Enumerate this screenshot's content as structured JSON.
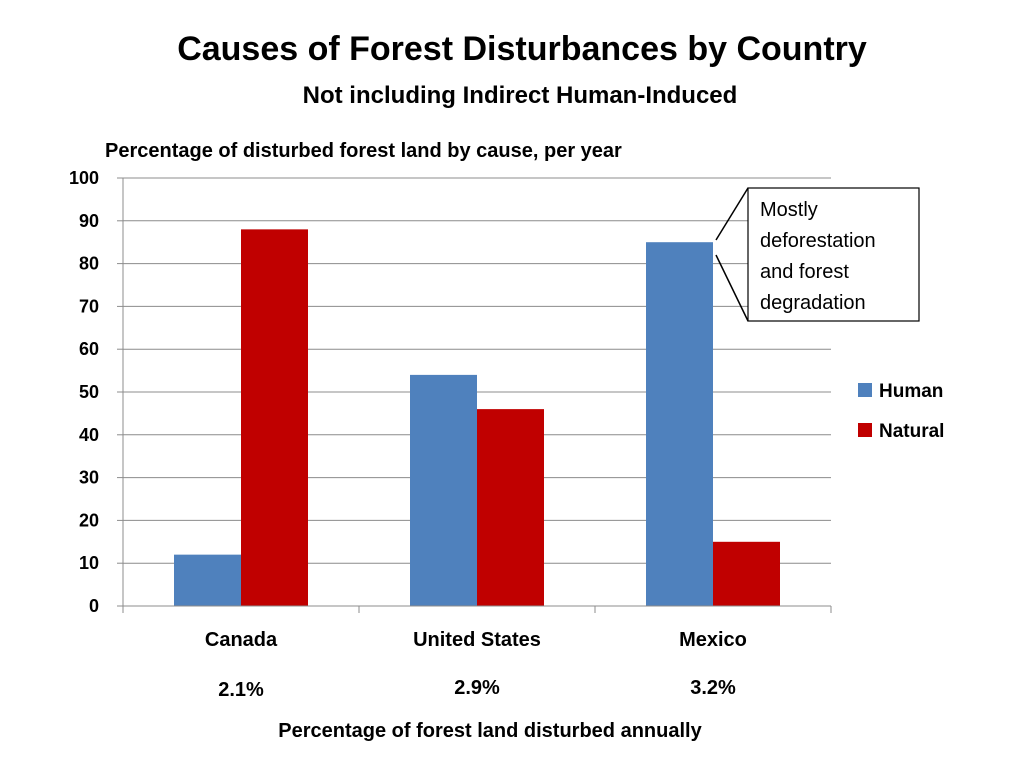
{
  "chart_data": {
    "type": "bar",
    "title": "Causes of Forest Disturbances by Country",
    "subtitle": "Not including Indirect Human-Induced",
    "ylabel": "Percentage of disturbed forest land by cause, per year",
    "xlabel": "Percentage of forest land disturbed annually",
    "categories": [
      "Canada",
      "United States",
      "Mexico"
    ],
    "category_annotations": [
      "2.1%",
      "2.9%",
      "3.2%"
    ],
    "series": [
      {
        "name": "Human",
        "color": "#4F81BD",
        "values": [
          12,
          54,
          85
        ]
      },
      {
        "name": "Natural",
        "color": "#C00000",
        "values": [
          88,
          46,
          15
        ]
      }
    ],
    "ylim": [
      0,
      100
    ],
    "yticks": [
      0,
      10,
      20,
      30,
      40,
      50,
      60,
      70,
      80,
      90,
      100
    ],
    "grid": true,
    "legend_position": "right",
    "callout": {
      "lines": [
        "Mostly",
        "deforestation",
        "and forest",
        "degradation"
      ],
      "points_to": "Mexico Human"
    }
  }
}
